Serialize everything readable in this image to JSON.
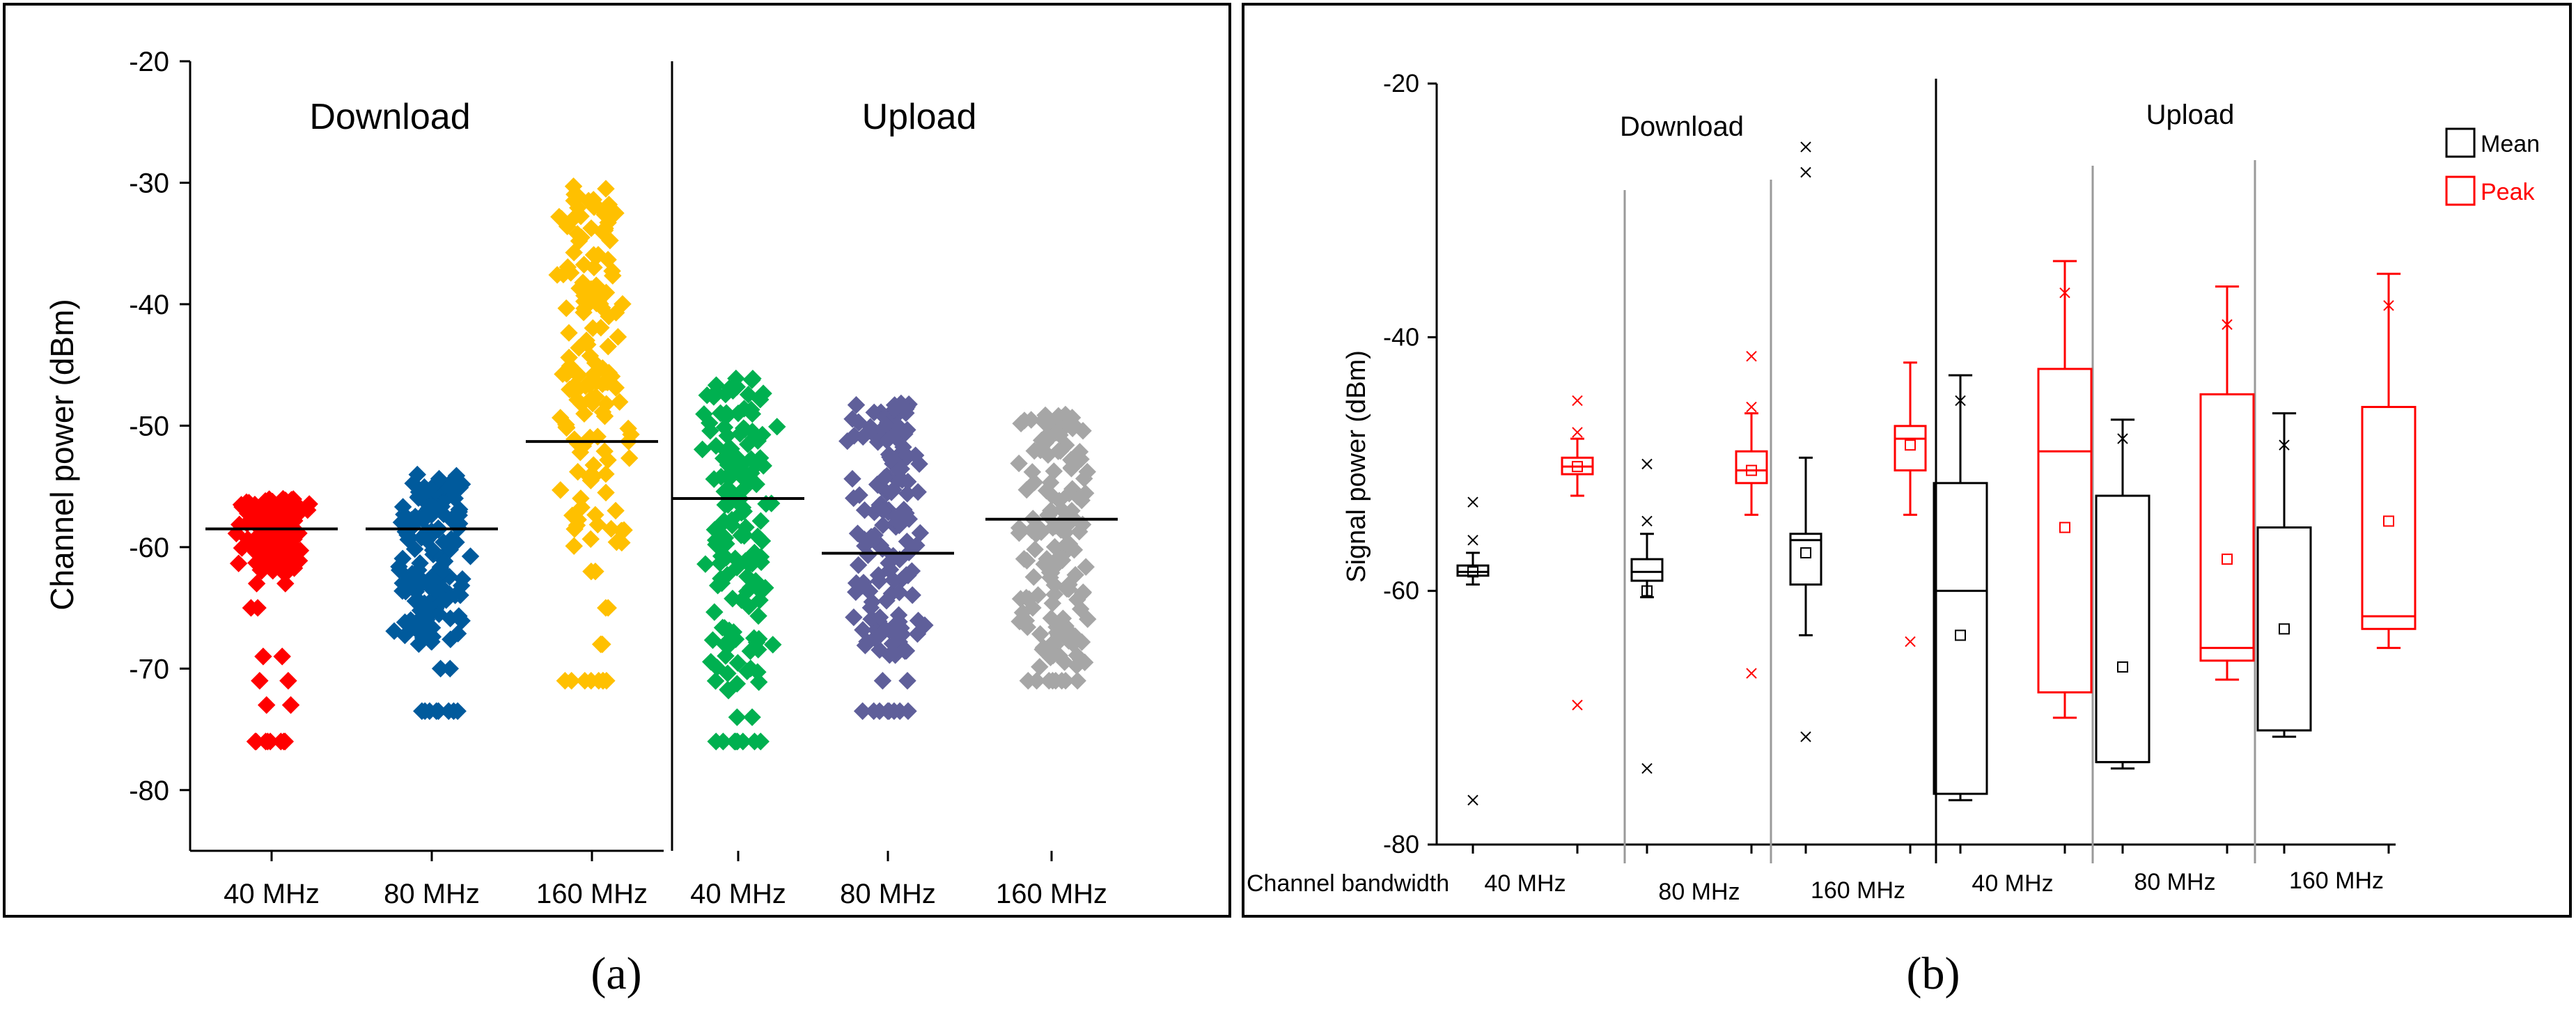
{
  "chart_data": [
    {
      "panel": "a",
      "type": "scatter",
      "caption": "(a)",
      "ylabel": "Channel power (dBm)",
      "ylim": [
        -85,
        -20
      ],
      "yticks": [
        -20,
        -30,
        -40,
        -50,
        -60,
        -70,
        -80
      ],
      "groups": [
        {
          "name": "Download",
          "categories": [
            {
              "label": "40 MHz",
              "color": "#ff0000",
              "mean": -58.5,
              "min": -76,
              "max": -56,
              "dense_top": -56,
              "dense_bottom": -62,
              "sparse": [
                -63,
                -65,
                -69,
                -71,
                -73,
                -76
              ]
            },
            {
              "label": "80 MHz",
              "color": "#005a9c",
              "mean": -58.5,
              "min": -73.5,
              "max": -53.5,
              "dense_top": -54,
              "dense_bottom": -68,
              "sparse": [
                -70,
                -73.5
              ]
            },
            {
              "label": "160 MHz",
              "color": "#ffc000",
              "mean": -51.3,
              "min": -71,
              "max": -29.5,
              "dense_top": -30,
              "dense_bottom": -60,
              "sparse": [
                -62,
                -65,
                -68,
                -71
              ]
            }
          ]
        },
        {
          "name": "Upload",
          "categories": [
            {
              "label": "40 MHz",
              "color": "#00b050",
              "mean": -56.0,
              "min": -76,
              "max": -46,
              "dense_top": -46,
              "dense_bottom": -72,
              "sparse": [
                -74,
                -76
              ]
            },
            {
              "label": "80 MHz",
              "color": "#5f5f9a",
              "mean": -60.5,
              "min": -73.5,
              "max": -48,
              "dense_top": -48,
              "dense_bottom": -69,
              "sparse": [
                -71,
                -73.5
              ]
            },
            {
              "label": "160 MHz",
              "color": "#a6a6a6",
              "mean": -57.7,
              "min": -71,
              "max": -48.5,
              "dense_top": -49,
              "dense_bottom": -70,
              "sparse": [
                -71
              ]
            }
          ]
        }
      ]
    },
    {
      "panel": "b",
      "type": "box",
      "caption": "(b)",
      "ylabel": "Signal power (dBm)",
      "xlabel_prefix": "Channel bandwidth",
      "ylim": [
        -80,
        -20
      ],
      "yticks": [
        -20,
        -40,
        -60,
        -80
      ],
      "legend": [
        {
          "label": "Mean",
          "color": "#000000"
        },
        {
          "label": "Peak",
          "color": "#ff0000"
        }
      ],
      "groups": [
        {
          "name": "Download",
          "bandwidths": [
            {
              "label": "40 MHz",
              "mean": {
                "whisker_low": -59.5,
                "q1": -58.8,
                "median": -58.5,
                "q3": -58,
                "whisker_high": -57,
                "avg": -58.5,
                "outliers": [
                  -53,
                  -56,
                  -76.5
                ]
              },
              "peak": {
                "whisker_low": -52.5,
                "q1": -50.8,
                "median": -50.2,
                "q3": -49.5,
                "whisker_high": -48,
                "avg": -50.2,
                "outliers": [
                  -45,
                  -47.5,
                  -69
                ]
              }
            },
            {
              "label": "80 MHz",
              "mean": {
                "whisker_low": -60.5,
                "q1": -59.2,
                "median": -58.5,
                "q3": -57.5,
                "whisker_high": -55.5,
                "avg": -60,
                "outliers": [
                  -50,
                  -54.5,
                  -74
                ]
              },
              "peak": {
                "whisker_low": -54,
                "q1": -51.5,
                "median": -50.5,
                "q3": -49,
                "whisker_high": -46,
                "avg": -50.5,
                "outliers": [
                  -41.5,
                  -45.5,
                  -66.5
                ]
              }
            },
            {
              "label": "160 MHz",
              "mean": {
                "whisker_low": -63.5,
                "q1": -59.5,
                "median": -56,
                "q3": -55.5,
                "whisker_high": -49.5,
                "avg": -57,
                "outliers": [
                  -25,
                  -27,
                  -71.5
                ]
              },
              "peak": {
                "whisker_low": -54,
                "q1": -50.5,
                "median": -48,
                "q3": -47,
                "whisker_high": -42,
                "avg": -48.5,
                "outliers": [
                  -64
                ]
              }
            }
          ]
        },
        {
          "name": "Upload",
          "bandwidths": [
            {
              "label": "40 MHz",
              "mean": {
                "whisker_low": -76.5,
                "q1": -76,
                "median": -60,
                "q3": -51.5,
                "whisker_high": -43,
                "avg": -63.5,
                "outliers": [
                  -45
                ]
              },
              "peak": {
                "whisker_low": -70,
                "q1": -68,
                "median": -49,
                "q3": -42.5,
                "whisker_high": -34,
                "avg": -55,
                "outliers": [
                  -36.5
                ]
              }
            },
            {
              "label": "80 MHz",
              "mean": {
                "whisker_low": -74,
                "q1": -73.5,
                "median": -73.5,
                "q3": -52.5,
                "whisker_high": -46.5,
                "avg": -66,
                "outliers": [
                  -48
                ]
              },
              "peak": {
                "whisker_low": -67,
                "q1": -65.5,
                "median": -64.5,
                "q3": -44.5,
                "whisker_high": -36,
                "avg": -57.5,
                "outliers": [
                  -39
                ]
              }
            },
            {
              "label": "160 MHz",
              "mean": {
                "whisker_low": -71.5,
                "q1": -71,
                "median": -71,
                "q3": -55,
                "whisker_high": -46,
                "avg": -63,
                "outliers": [
                  -48.5
                ]
              },
              "peak": {
                "whisker_low": -64.5,
                "q1": -63,
                "median": -62,
                "q3": -45.5,
                "whisker_high": -35,
                "avg": -54.5,
                "outliers": [
                  -37.5
                ]
              }
            }
          ]
        }
      ]
    }
  ]
}
